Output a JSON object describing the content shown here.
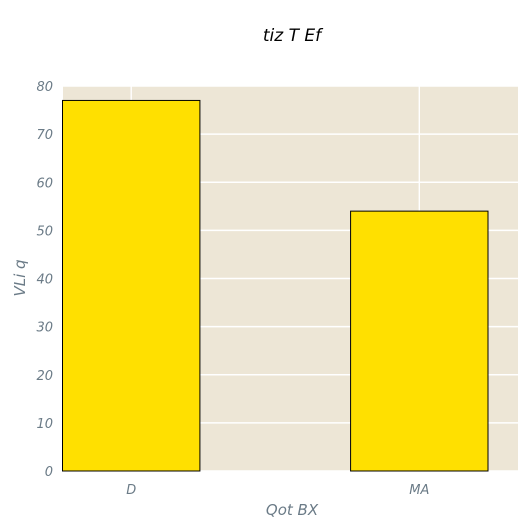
{
  "chart_data": {
    "type": "bar",
    "title": "tiz T Ef",
    "xlabel": "Qot BX",
    "ylabel": "VLi q",
    "categories": [
      "D",
      "MA"
    ],
    "values": [
      77,
      54
    ],
    "ylim": [
      0,
      80
    ],
    "yticks": [
      0,
      10,
      20,
      30,
      40,
      50,
      60,
      70,
      80
    ],
    "grid": true,
    "legend": "none",
    "colors": {
      "bar_fill": "#ffe000",
      "bar_edge": "#000000",
      "plot_background": "#ede6d6",
      "grid": "#ffffff",
      "axis_text": "#6b7b87",
      "title_text": "#000000"
    }
  }
}
